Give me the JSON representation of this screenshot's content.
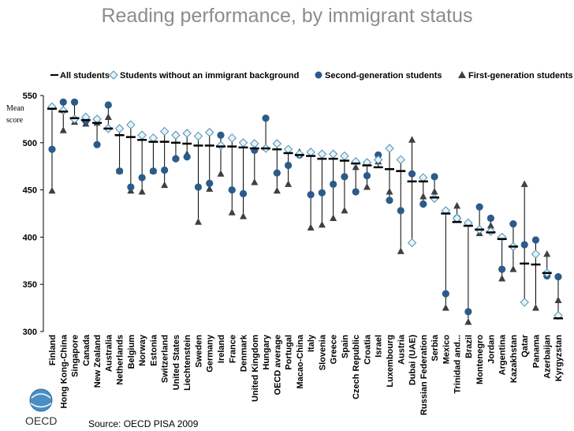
{
  "page_title": "Reading performance, by immigrant status",
  "source_note": "Source: OECD PISA 2009",
  "logo_text": "OECD",
  "colors": {
    "background": "#ffffff",
    "title": "#8c8c8c",
    "all_students": "#000000",
    "without_immigrant": "#4a8fb4",
    "second_generation": "#2b5b8a",
    "first_generation": "#404040",
    "range_line": "#000000"
  },
  "chart_data": {
    "type": "scatter",
    "title": "Reading performance, by immigrant status",
    "ylabel": "Mean score",
    "xlabel": "",
    "ylim": [
      300,
      550
    ],
    "yticks": [
      300,
      350,
      400,
      450,
      500,
      550
    ],
    "grid": false,
    "legend_position": "top",
    "categories": [
      "Finland",
      "Hong Kong-China",
      "Singapore",
      "Canada",
      "New Zealand",
      "Australia",
      "Netherlands",
      "Belgium",
      "Norway",
      "Estonia",
      "Switzerland",
      "United States",
      "Liechtenstein",
      "Sweden",
      "Germany",
      "Ireland",
      "France",
      "Denmark",
      "United Kingdom",
      "Hungary",
      "OECD average",
      "Portugal",
      "Macao-China",
      "Italy",
      "Slovenia",
      "Greece",
      "Spain",
      "Czech Republic",
      "Croatia",
      "Israel",
      "Luxembourg",
      "Austria",
      "Dubai (UAE)",
      "Russian Federation",
      "Serbia",
      "Mexico",
      "Trinidad and...",
      "Brazil",
      "Montenegro",
      "Jordan",
      "Argentina",
      "Kazakhstan",
      "Qatar",
      "Panama",
      "Azerbaijan",
      "Kyrgyzstan"
    ],
    "series": [
      {
        "name": "All students",
        "marker": "dash",
        "values": [
          536,
          533,
          526,
          524,
          521,
          515,
          508,
          506,
          503,
          501,
          501,
          500,
          499,
          497,
          497,
          496,
          496,
          495,
          494,
          494,
          493,
          489,
          487,
          486,
          483,
          483,
          481,
          478,
          476,
          474,
          472,
          470,
          459,
          459,
          442,
          425,
          416,
          412,
          408,
          405,
          398,
          390,
          372,
          371,
          362,
          314
        ]
      },
      {
        "name": "Students without an immigrant background",
        "marker": "diamond",
        "values": [
          538,
          534,
          525,
          527,
          525,
          515,
          515,
          519,
          508,
          505,
          512,
          508,
          510,
          507,
          511,
          497,
          505,
          500,
          499,
          494,
          499,
          493,
          488,
          490,
          488,
          488,
          486,
          480,
          479,
          482,
          494,
          482,
          394,
          463,
          441,
          428,
          420,
          415,
          408,
          406,
          400,
          390,
          331,
          382,
          362,
          317
        ]
      },
      {
        "name": "Second-generation students",
        "marker": "circle",
        "values": [
          493,
          543,
          543,
          523,
          498,
          540,
          470,
          453,
          463,
          470,
          471,
          483,
          485,
          453,
          457,
          508,
          450,
          446,
          492,
          526,
          468,
          476,
          487,
          445,
          447,
          456,
          464,
          448,
          465,
          487,
          439,
          428,
          467,
          435,
          464,
          340,
          420,
          321,
          432,
          420,
          366,
          414,
          392,
          397,
          359,
          358
        ]
      },
      {
        "name": "First-generation students",
        "marker": "triangle",
        "values": [
          449,
          513,
          522,
          520,
          521,
          527,
          470,
          449,
          448,
          470,
          455,
          484,
          488,
          416,
          451,
          467,
          426,
          422,
          458,
          495,
          449,
          456,
          490,
          410,
          413,
          420,
          428,
          474,
          453,
          480,
          448,
          385,
          503,
          443,
          448,
          325,
          433,
          310,
          404,
          412,
          356,
          366,
          456,
          325,
          382,
          333
        ]
      }
    ]
  }
}
